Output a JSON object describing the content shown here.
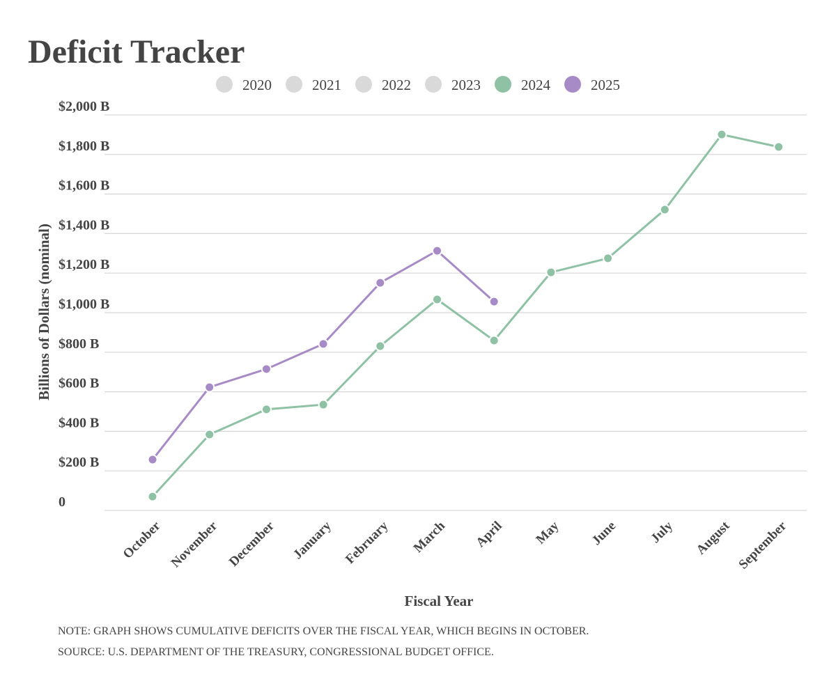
{
  "chart_data": {
    "type": "line",
    "title": "Deficit Tracker",
    "y_label": "Billions of Dollars (nominal)",
    "x_label": "Fiscal Year",
    "notes": [
      "NOTE: GRAPH SHOWS CUMULATIVE DEFICITS OVER THE FISCAL YEAR, WHICH BEGINS IN OCTOBER.",
      "SOURCE: U.S. DEPARTMENT OF THE TREASURY, CONGRESSIONAL BUDGET OFFICE."
    ],
    "categories": [
      "October",
      "November",
      "December",
      "January",
      "February",
      "March",
      "April",
      "May",
      "June",
      "July",
      "August",
      "September"
    ],
    "series": [
      {
        "name": "2020",
        "color": "#d9d9d9",
        "values": [
          null,
          null,
          null,
          null,
          null,
          null,
          null,
          null,
          null,
          null,
          null,
          null
        ]
      },
      {
        "name": "2021",
        "color": "#d9d9d9",
        "values": [
          null,
          null,
          null,
          null,
          null,
          null,
          null,
          null,
          null,
          null,
          null,
          null
        ]
      },
      {
        "name": "2022",
        "color": "#d9d9d9",
        "values": [
          null,
          null,
          null,
          null,
          null,
          null,
          null,
          null,
          null,
          null,
          null,
          null
        ]
      },
      {
        "name": "2023",
        "color": "#d9d9d9",
        "values": [
          null,
          null,
          null,
          null,
          null,
          null,
          null,
          null,
          null,
          null,
          null,
          null
        ]
      },
      {
        "name": "2024",
        "color": "#8fc1a5",
        "values": [
          70,
          384,
          511,
          535,
          831,
          1067,
          859,
          1204,
          1275,
          1521,
          1901,
          1838
        ]
      },
      {
        "name": "2025",
        "color": "#a78bc6",
        "values": [
          257,
          623,
          715,
          842,
          1151,
          1313,
          1056,
          null,
          null,
          null,
          null,
          null
        ]
      }
    ],
    "ylim": [
      0,
      2000
    ],
    "yticks": [
      0,
      {
        "value": 200,
        "label": "$200 B"
      },
      {
        "value": 400,
        "label": "$400 B"
      },
      {
        "value": 600,
        "label": "$600 B"
      },
      {
        "value": 800,
        "label": "$800 B"
      },
      {
        "value": 1000,
        "label": "$1,000 B"
      },
      {
        "value": 1200,
        "label": "$1,200 B"
      },
      {
        "value": 1400,
        "label": "$1,400 B"
      },
      {
        "value": 1600,
        "label": "$1,600 B"
      },
      {
        "value": 1800,
        "label": "$1,800 B"
      },
      {
        "value": 2000,
        "label": "$2,000 B"
      }
    ],
    "grid": true,
    "legend": "top"
  }
}
